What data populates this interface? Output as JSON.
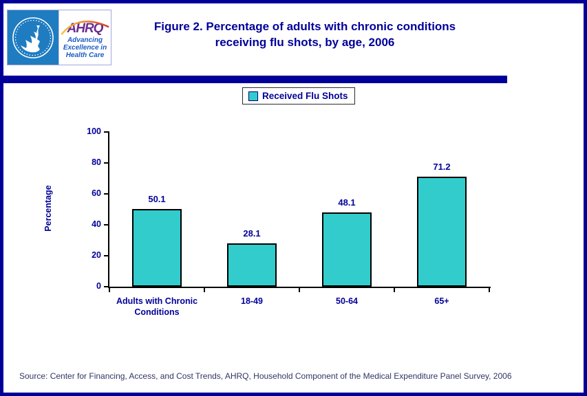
{
  "header": {
    "title": "Figure 2. Percentage of adults with chronic conditions receiving flu shots, by age, 2006",
    "logo": {
      "ahrq_acronym": "AHRQ",
      "ahrq_tagline": "Advancing Excellence in Health Care"
    }
  },
  "legend": {
    "label": "Received Flu Shots"
  },
  "chart_data": {
    "type": "bar",
    "categories": [
      "Adults with Chronic Conditions",
      "18-49",
      "50-64",
      "65+"
    ],
    "values": [
      50.1,
      28.1,
      48.1,
      71.2
    ],
    "series_name": "Received Flu Shots",
    "title": "Figure 2. Percentage of adults with chronic conditions receiving flu shots, by age, 2006",
    "xlabel": "",
    "ylabel": "Percentage",
    "ylim": [
      0,
      100
    ],
    "yticks": [
      0,
      20,
      40,
      60,
      80,
      100
    ],
    "grid": false,
    "legend_position": "top",
    "bar_color": "#33cccc"
  },
  "footer": {
    "source": "Source: Center for Financing, Access, and Cost Trends, AHRQ, Household Component of the Medical Expenditure Panel Survey, 2006"
  },
  "colors": {
    "accent_navy": "#000099",
    "bar_teal": "#33cccc",
    "hhs_blue": "#1f7cc1",
    "ahrq_purple": "#6b2d90",
    "tagline_blue": "#1b5bc4"
  }
}
